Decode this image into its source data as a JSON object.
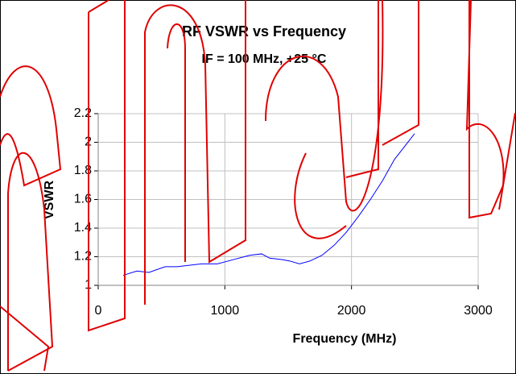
{
  "chart_data": {
    "type": "line",
    "title": "RF VSWR vs Frequency",
    "subtitle": "IF = 100 MHz, +25 °C",
    "xlabel": "Frequency (MHz)",
    "ylabel": "VSWR",
    "series": [
      {
        "name": "VSWR",
        "color": "#0000ff",
        "x": [
          197,
          305,
          400,
          528,
          623,
          814,
          941,
          1068,
          1195,
          1290,
          1354,
          1449,
          1513,
          1589,
          1672,
          1767,
          1863,
          1958,
          2053,
          2149,
          2244,
          2339,
          2498
        ],
        "values": [
          1.07,
          1.1,
          1.09,
          1.13,
          1.13,
          1.15,
          1.15,
          1.18,
          1.21,
          1.22,
          1.19,
          1.18,
          1.17,
          1.15,
          1.17,
          1.21,
          1.28,
          1.37,
          1.48,
          1.6,
          1.73,
          1.88,
          2.06
        ]
      }
    ],
    "xlim": [
      0,
      3000
    ],
    "xticks": [
      0,
      1000,
      2000,
      3000
    ],
    "ylim": [
      1,
      2.2
    ],
    "yticks": [
      1,
      1.2,
      1.4,
      1.6,
      1.8,
      2,
      2.2
    ],
    "grid": true
  }
}
